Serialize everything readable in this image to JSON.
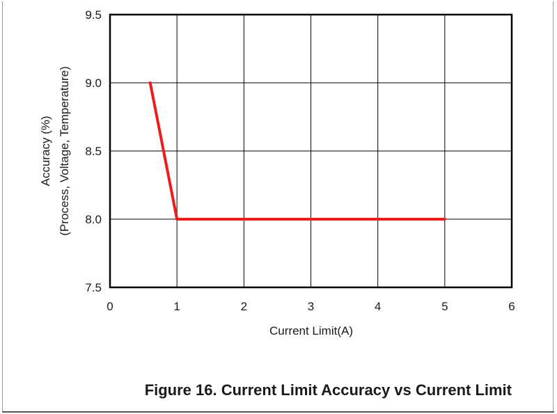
{
  "caption": "Figure 16. Current Limit Accuracy vs Current Limit",
  "chart_data": {
    "type": "line",
    "title": "",
    "xlabel": "Current Limit(A)",
    "ylabel_lines": [
      "Accuracy (%)",
      "(Process, Voltage, Temperature)"
    ],
    "xlim": [
      0,
      6
    ],
    "ylim": [
      7.5,
      9.5
    ],
    "x_ticks": [
      0,
      1,
      2,
      3,
      4,
      5,
      6
    ],
    "y_ticks": [
      "7.5",
      "8.0",
      "8.5",
      "9.0",
      "9.5"
    ],
    "grid": true,
    "series": [
      {
        "color": "#ee1c1c",
        "x": [
          0.6,
          1,
          5
        ],
        "y": [
          9.0,
          8.0,
          8.0
        ]
      }
    ]
  }
}
